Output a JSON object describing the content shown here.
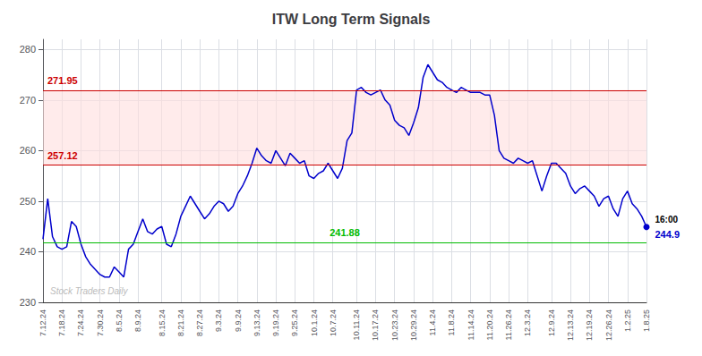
{
  "chart_data": {
    "type": "line",
    "title": "ITW Long Term Signals",
    "categories": [
      "7.12.24",
      null,
      null,
      null,
      "7.18.24",
      null,
      null,
      null,
      "7.24.24",
      null,
      null,
      null,
      "7.30.24",
      null,
      null,
      null,
      "8.5.24",
      null,
      null,
      null,
      "8.9.24",
      null,
      null,
      null,
      null,
      "8.15.24",
      null,
      null,
      null,
      "8.21.24",
      null,
      null,
      null,
      "8.27.24",
      null,
      null,
      null,
      "9.3.24",
      null,
      null,
      null,
      "9.9.24",
      null,
      null,
      null,
      "9.13.24",
      null,
      null,
      null,
      "9.19.24",
      null,
      null,
      null,
      "9.25.24",
      null,
      null,
      null,
      "10.1.24",
      null,
      null,
      null,
      "10.7.24",
      null,
      null,
      null,
      null,
      "10.11.24",
      null,
      null,
      null,
      "10.17.24",
      null,
      null,
      null,
      "10.23.24",
      null,
      null,
      null,
      "10.29.24",
      null,
      null,
      null,
      "11.4.24",
      null,
      null,
      null,
      "11.8.24",
      null,
      null,
      null,
      "11.14.24",
      null,
      null,
      null,
      "11.20.24",
      null,
      null,
      null,
      "11.26.24",
      null,
      null,
      null,
      "12.3.24",
      null,
      null,
      null,
      null,
      "12.9.24",
      null,
      null,
      null,
      "12.13.24",
      null,
      null,
      null,
      "12.19.24",
      null,
      null,
      null,
      "12.26.24",
      null,
      null,
      null,
      "1.2.25",
      null,
      null,
      null,
      "1.8.25"
    ],
    "values": [
      242.5,
      250.5,
      243.0,
      241.0,
      240.5,
      241.0,
      246.0,
      245.0,
      241.5,
      239.0,
      237.5,
      236.5,
      235.5,
      235.0,
      235.0,
      237.0,
      236.0,
      235.0,
      240.5,
      241.5,
      244.0,
      246.5,
      244.0,
      243.5,
      244.5,
      245.0,
      241.5,
      241.0,
      243.5,
      247.0,
      249.0,
      251.0,
      249.5,
      248.0,
      246.5,
      247.5,
      249.0,
      250.0,
      249.5,
      248.0,
      249.0,
      251.5,
      253.0,
      255.0,
      257.5,
      260.5,
      259.0,
      258.0,
      257.5,
      260.0,
      258.5,
      257.0,
      259.5,
      258.5,
      257.5,
      258.0,
      255.0,
      254.5,
      255.5,
      256.0,
      257.5,
      256.0,
      254.5,
      256.5,
      262.0,
      263.5,
      272.0,
      272.5,
      271.5,
      271.0,
      271.5,
      272.0,
      270.0,
      269.0,
      266.0,
      265.0,
      264.5,
      263.0,
      265.5,
      268.5,
      274.5,
      277.0,
      275.5,
      274.0,
      273.5,
      272.5,
      272.0,
      271.5,
      272.5,
      272.0,
      271.5,
      271.5,
      271.5,
      271.0,
      271.0,
      267.0,
      260.0,
      258.5,
      258.0,
      257.5,
      258.5,
      258.0,
      257.5,
      258.0,
      255.0,
      252.0,
      255.0,
      257.5,
      257.5,
      256.5,
      255.5,
      253.0,
      251.5,
      252.5,
      253.0,
      252.0,
      251.0,
      249.0,
      250.5,
      251.0,
      248.5,
      247.0,
      250.5,
      252.0,
      249.5,
      248.5,
      247.0,
      244.9
    ],
    "color": "#0000cc",
    "ylim": [
      230,
      282
    ],
    "yticks": [
      230,
      240,
      250,
      260,
      270,
      280
    ],
    "grid": true,
    "reference_lines": [
      {
        "value": 271.95,
        "label": "271.95",
        "color": "#cc0000"
      },
      {
        "value": 257.12,
        "label": "257.12",
        "color": "#cc0000"
      },
      {
        "value": 241.88,
        "label": "241.88",
        "color": "#00bb00"
      }
    ],
    "band": {
      "from": 257.12,
      "to": 271.95,
      "color": "#ffdddd"
    },
    "watermark": "Stock Traders Daily",
    "watermark_color": "#bbbbbb",
    "last_point": {
      "time": "16:00",
      "price_label": "244.9"
    }
  }
}
